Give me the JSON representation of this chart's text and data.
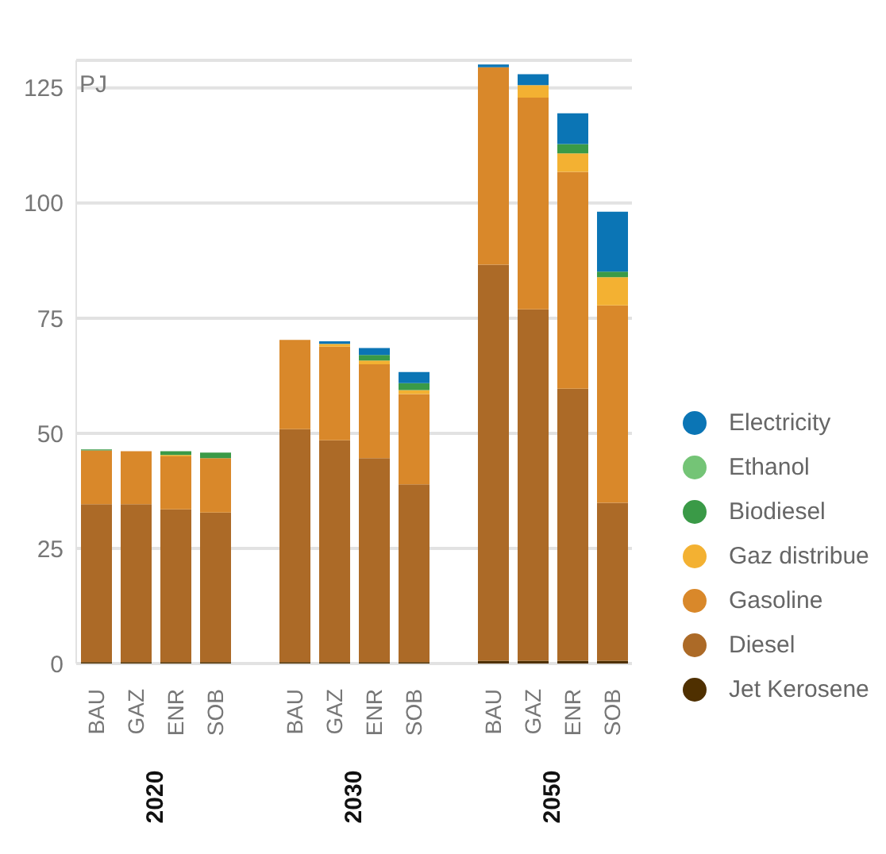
{
  "chart_data": {
    "type": "bar",
    "stacked": true,
    "ylabel": "PJ",
    "categories": [
      "BAU",
      "GAZ",
      "ENR",
      "SOB",
      null,
      "BAU",
      "GAZ",
      "ENR",
      "SOB",
      null,
      "BAU",
      "GAZ",
      "ENR",
      "SOB"
    ],
    "annotations": [
      "2020",
      "2030",
      "2050"
    ],
    "series": [
      {
        "name": "Jet Kerosene",
        "color": "#4f3000",
        "values": [
          0.3,
          0.3,
          0.3,
          0.3,
          null,
          0.3,
          0.3,
          0.3,
          0.3,
          null,
          0.6,
          0.6,
          0.6,
          0.6
        ]
      },
      {
        "name": "Diesel",
        "color": "#ac6a27",
        "values": [
          34.3,
          34.3,
          33.2,
          32.5,
          null,
          50.6,
          48.2,
          44.3,
          38.6,
          null,
          86.0,
          76.3,
          59.1,
          34.3
        ]
      },
      {
        "name": "Gasoline",
        "color": "#d9882a",
        "values": [
          11.7,
          11.5,
          11.5,
          11.8,
          null,
          19.4,
          20.3,
          20.4,
          19.6,
          null,
          42.9,
          46.0,
          47.1,
          42.9
        ]
      },
      {
        "name": "Gaz distribue",
        "color": "#f3b132",
        "values": [
          0,
          0,
          0.3,
          0,
          null,
          0,
          0.6,
          0.8,
          0.9,
          null,
          0,
          2.7,
          4.0,
          6.1
        ]
      },
      {
        "name": "Biodiesel",
        "color": "#3a9a47",
        "values": [
          0.2,
          0,
          0.8,
          1.2,
          null,
          0,
          0,
          1.2,
          1.5,
          null,
          0,
          0,
          2.0,
          1.2
        ]
      },
      {
        "name": "Ethanol",
        "color": "#74c476",
        "values": [
          0,
          0,
          0,
          0,
          null,
          0,
          0,
          0,
          0,
          null,
          0,
          0,
          0,
          0
        ]
      },
      {
        "name": "Electricity",
        "color": "#0b75b5",
        "values": [
          0,
          0,
          0,
          0,
          null,
          0,
          0.6,
          1.5,
          2.4,
          null,
          0.6,
          2.4,
          6.7,
          13.0
        ]
      }
    ],
    "ylim": [
      0,
      131
    ],
    "yticks": [
      0,
      25,
      50,
      75,
      100,
      125
    ],
    "grid": "y",
    "legend": "right"
  }
}
